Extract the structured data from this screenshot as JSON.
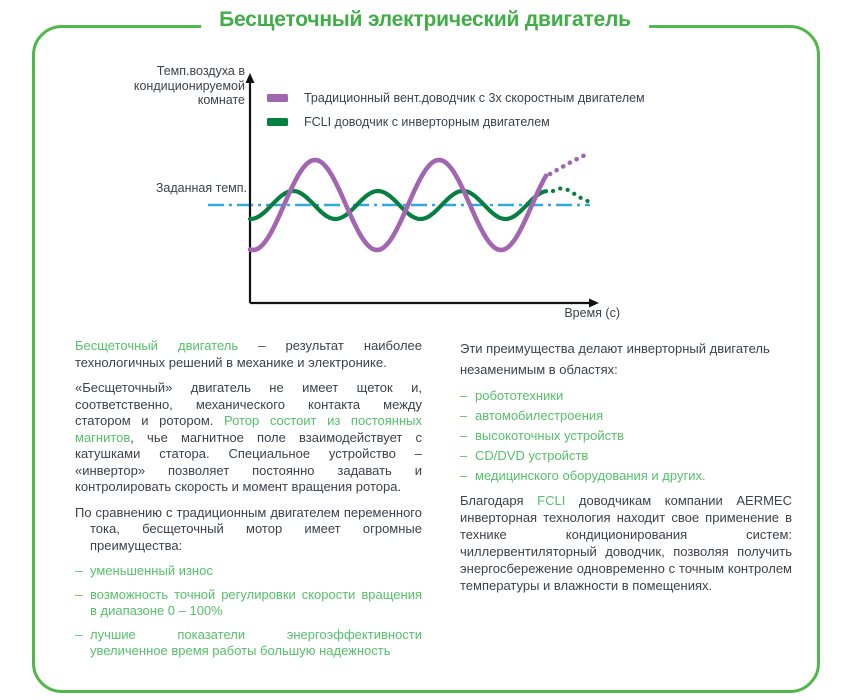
{
  "page": {
    "title": "Бесщеточный электрический двигатель",
    "accent_green": "#50b848",
    "text_green": "#55c169",
    "text_dark": "#3d414c"
  },
  "chart": {
    "type": "line",
    "y_axis_label_lines": [
      "Темп.воздуха в",
      "кондиционируемой",
      "комнате"
    ],
    "setpoint_label": "Заданная темп.",
    "x_axis_label": "Время (с)",
    "legend": [
      {
        "label": "Традиционный вент.доводчик с 3х скоростным двигателем",
        "color": "#a266b0"
      },
      {
        "label": "FCLI доводчик с инверторным двигателем",
        "color": "#077f41"
      }
    ],
    "colors": {
      "setpoint_line": "#2fa9e0",
      "axis": "#111111"
    },
    "chart_data": {
      "type": "line",
      "description": "Qualitative diagram: air temperature oscillation around a set point over time; traditional 3-speed fan coil oscillates with large amplitude, FCLI inverter fan coil with small amplitude; dotted forecast shows traditional motor diverging upward while inverter converges to the set point.",
      "setpoint_y": 135,
      "series": [
        {
          "name": "inverter",
          "color": "#077f41",
          "center": 135,
          "amplitude": 14,
          "period": 85,
          "peak_x": 93,
          "x_start": 50,
          "x_end": 347,
          "stroke_width": 4.2
        },
        {
          "name": "traditional",
          "color": "#a266b0",
          "center": 135,
          "amplitude": 45,
          "period": 124,
          "peak_x": 115,
          "x_start": 50,
          "x_end": 346,
          "stroke_width": 4.6
        }
      ],
      "forecast_segments": [
        {
          "name": "inverter-forecast",
          "color": "#077f41",
          "stroke_width": 4.2,
          "points": [
            [
              353,
              121
            ],
            [
              360,
              118.5
            ],
            [
              367,
              119.5
            ],
            [
              373,
              123
            ],
            [
              379,
              127
            ],
            [
              385,
              130
            ],
            [
              390,
              132
            ]
          ]
        },
        {
          "name": "traditional-forecast",
          "color": "#a266b0",
          "stroke_width": 4.6,
          "points": [
            [
              350,
              104
            ],
            [
              357,
              100
            ],
            [
              364,
              96
            ],
            [
              371,
              92
            ],
            [
              378,
              88.5
            ],
            [
              384,
              85.5
            ]
          ]
        }
      ]
    }
  },
  "left_column": {
    "p1_green": "Бесщеточный двигатель",
    "p1_rest": " – результат наиболее технологичных решений в механике и электронике.",
    "p2_a": "«Бесщеточный» двигатель не имеет щеток и, соответственно, механического контакта между статором и ротором. ",
    "p2_green": "Ротор состоит из постоянных магнитов",
    "p2_b": ", чье магнитное поле взаимодействует с катушками статора. Специальное устройство – «инвертор» позволяет постоянно задавать и контролировать скорость и момент вращения ротора.",
    "p3": "По сравнению с традиционным двигателем переменного тока, бесщеточный мотор имеет огромные преимущества:",
    "bullets": [
      "уменьшенный износ",
      "возможность точной регулировки скорости вращения в диапазоне 0 – 100%",
      "лучшие показатели энергоэффективности увеличенное время работы большую надежность"
    ]
  },
  "right_column": {
    "intro": "Эти преимущества делают инверторный двигатель незаменимым в областях:",
    "bullets": [
      "робототехники",
      "автомобилестроения",
      "высокоточных устройств",
      "CD/DVD устройств",
      "медицинского оборудования и других."
    ],
    "outro_a": "Благодаря ",
    "outro_green": "FCLI",
    "outro_b": " доводчикам компании AERMEC инверторная технология находит свое применение в технике кондиционирования систем: чиллервентиляторный доводчик, позволяя получить энергосбережение одновременно с точным контролем температуры и влажности в помещениях."
  }
}
